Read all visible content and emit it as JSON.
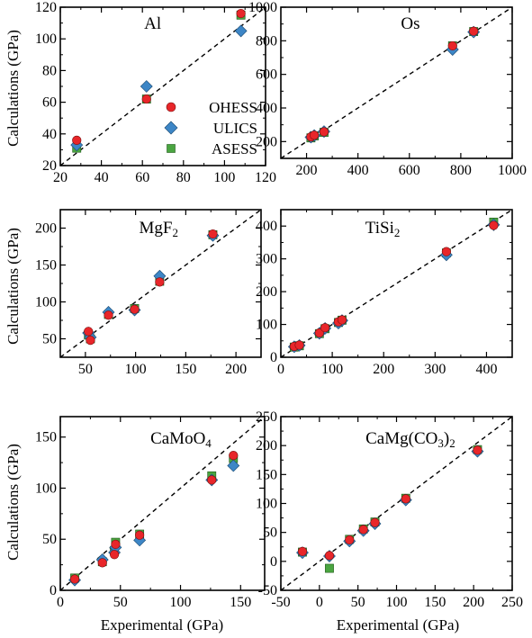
{
  "figure": {
    "xlabel_left": "Experimental (GPa)",
    "xlabel_right": "Experimental (GPa)",
    "ylabel_top": "Calculations (GPa)",
    "ylabel_middle": "Calculations (GPa)",
    "ylabel_bottom": "Calculations (GPa)",
    "legend": {
      "ohess": "OHESS",
      "ulics": "ULICS",
      "asess": "ASESS",
      "colors": {
        "ohess": "#e8262a",
        "ulics": "#3d86c6",
        "asess": "#4aa541"
      }
    }
  },
  "chart_data": [
    {
      "type": "scatter",
      "title": "Al",
      "xlim": [
        20,
        120
      ],
      "ylim": [
        20,
        120
      ],
      "xticks": [
        20,
        40,
        60,
        80,
        100,
        120
      ],
      "yticks": [
        20,
        40,
        60,
        80,
        100,
        120
      ],
      "reference_line": "y = x (dashed)",
      "legend_position": "right",
      "series": [
        {
          "name": "OHESS",
          "points": [
            [
              28,
              36
            ],
            [
              62,
              62
            ],
            [
              108,
              116
            ]
          ]
        },
        {
          "name": "ULICS",
          "points": [
            [
              28,
              33
            ],
            [
              62,
              70
            ],
            [
              108,
              105
            ]
          ]
        },
        {
          "name": "ASESS",
          "points": [
            [
              28,
              31
            ],
            [
              62,
              62
            ],
            [
              108,
              115
            ]
          ]
        }
      ]
    },
    {
      "type": "scatter",
      "title": "Os",
      "xlim": [
        100,
        1000
      ],
      "ylim": [
        100,
        1000
      ],
      "xticks": [
        200,
        400,
        600,
        800,
        1000
      ],
      "yticks": [
        200,
        400,
        600,
        800,
        1000
      ],
      "reference_line": "y = x (dashed)",
      "series": [
        {
          "name": "OHESS",
          "points": [
            [
              217,
              228
            ],
            [
              230,
              238
            ],
            [
              268,
              258
            ],
            [
              768,
              770
            ],
            [
              850,
              857
            ]
          ]
        },
        {
          "name": "ULICS",
          "points": [
            [
              217,
              226
            ],
            [
              230,
              236
            ],
            [
              268,
              260
            ],
            [
              768,
              748
            ],
            [
              850,
              852
            ]
          ]
        },
        {
          "name": "ASESS",
          "points": [
            [
              217,
              222
            ],
            [
              230,
              234
            ],
            [
              268,
              255
            ],
            [
              768,
              770
            ],
            [
              850,
              855
            ]
          ]
        }
      ]
    },
    {
      "type": "scatter",
      "title": "MgF",
      "title_subscript": "2",
      "xlim": [
        25,
        225
      ],
      "ylim": [
        25,
        225
      ],
      "xticks": [
        50,
        100,
        150,
        200
      ],
      "yticks": [
        50,
        100,
        150,
        200
      ],
      "reference_line": "y = x (dashed)",
      "series": [
        {
          "name": "OHESS",
          "points": [
            [
              53,
              60
            ],
            [
              55,
              48
            ],
            [
              73,
              82
            ],
            [
              99,
              90
            ],
            [
              124,
              127
            ],
            [
              177,
              192
            ]
          ]
        },
        {
          "name": "ULICS",
          "points": [
            [
              53,
              58
            ],
            [
              55,
              52
            ],
            [
              73,
              86
            ],
            [
              99,
              89
            ],
            [
              124,
              135
            ],
            [
              177,
              190
            ]
          ]
        },
        {
          "name": "ASESS",
          "points": [
            [
              53,
              55
            ],
            [
              55,
              50
            ],
            [
              73,
              83
            ],
            [
              99,
              91
            ],
            [
              124,
              128
            ],
            [
              177,
              191
            ]
          ]
        }
      ]
    },
    {
      "type": "scatter",
      "title": "TiSi",
      "title_subscript": "2",
      "xlim": [
        0,
        450
      ],
      "ylim": [
        0,
        450
      ],
      "xticks": [
        0,
        100,
        200,
        300,
        400
      ],
      "yticks": [
        0,
        100,
        200,
        300,
        400
      ],
      "reference_line": "y = x (dashed)",
      "series": [
        {
          "name": "OHESS",
          "points": [
            [
              26,
              33
            ],
            [
              36,
              37
            ],
            [
              75,
              74
            ],
            [
              86,
              90
            ],
            [
              112,
              108
            ],
            [
              119,
              114
            ],
            [
              322,
              322
            ],
            [
              414,
              402
            ]
          ]
        },
        {
          "name": "ULICS",
          "points": [
            [
              26,
              32
            ],
            [
              36,
              36
            ],
            [
              75,
              73
            ],
            [
              86,
              88
            ],
            [
              112,
              104
            ],
            [
              119,
              112
            ],
            [
              322,
              312
            ],
            [
              414,
              404
            ]
          ]
        },
        {
          "name": "ASESS",
          "points": [
            [
              26,
              31
            ],
            [
              36,
              35
            ],
            [
              75,
              72
            ],
            [
              86,
              87
            ],
            [
              112,
              106
            ],
            [
              119,
              113
            ],
            [
              322,
              318
            ],
            [
              414,
              412
            ]
          ]
        }
      ]
    },
    {
      "type": "scatter",
      "title": "CaMoO",
      "title_subscript": "4",
      "xlim": [
        0,
        170
      ],
      "ylim": [
        0,
        170
      ],
      "xticks": [
        0,
        50,
        100,
        150
      ],
      "yticks": [
        0,
        50,
        100,
        150
      ],
      "reference_line": "y = x (dashed)",
      "series": [
        {
          "name": "OHESS",
          "points": [
            [
              12,
              11
            ],
            [
              35,
              27
            ],
            [
              45,
              35
            ],
            [
              46,
              45
            ],
            [
              66,
              54
            ],
            [
              126,
              108
            ],
            [
              144,
              132
            ]
          ]
        },
        {
          "name": "ULICS",
          "points": [
            [
              12,
              10
            ],
            [
              35,
              30
            ],
            [
              45,
              37
            ],
            [
              46,
              42
            ],
            [
              66,
              49
            ],
            [
              126,
              108
            ],
            [
              144,
              122
            ]
          ]
        },
        {
          "name": "ASESS",
          "points": [
            [
              12,
              12
            ],
            [
              35,
              28
            ],
            [
              45,
              39
            ],
            [
              46,
              47
            ],
            [
              66,
              55
            ],
            [
              126,
              112
            ],
            [
              144,
              129
            ]
          ]
        }
      ]
    },
    {
      "type": "scatter",
      "title": "CaMg(CO",
      "title_subscript": "3",
      "title_suffix": ")",
      "title_suffix_subscript": "2",
      "xlim": [
        -50,
        250
      ],
      "ylim": [
        -50,
        250
      ],
      "xticks": [
        -50,
        0,
        50,
        100,
        150,
        200,
        250
      ],
      "yticks": [
        -50,
        0,
        50,
        100,
        150,
        200,
        250
      ],
      "reference_line": "y = x (dashed)",
      "series": [
        {
          "name": "OHESS",
          "points": [
            [
              -22,
              17
            ],
            [
              13,
              10
            ],
            [
              39,
              37
            ],
            [
              57,
              55
            ],
            [
              72,
              67
            ],
            [
              112,
              108
            ],
            [
              205,
              192
            ]
          ]
        },
        {
          "name": "ULICS",
          "points": [
            [
              -22,
              15
            ],
            [
              13,
              9
            ],
            [
              39,
              35
            ],
            [
              57,
              53
            ],
            [
              72,
              65
            ],
            [
              112,
              106
            ],
            [
              205,
              190
            ]
          ]
        },
        {
          "name": "ASESS",
          "points": [
            [
              -22,
              16
            ],
            [
              13,
              -12
            ],
            [
              39,
              38
            ],
            [
              57,
              56
            ],
            [
              72,
              68
            ],
            [
              112,
              109
            ],
            [
              205,
              193
            ]
          ]
        }
      ]
    }
  ]
}
